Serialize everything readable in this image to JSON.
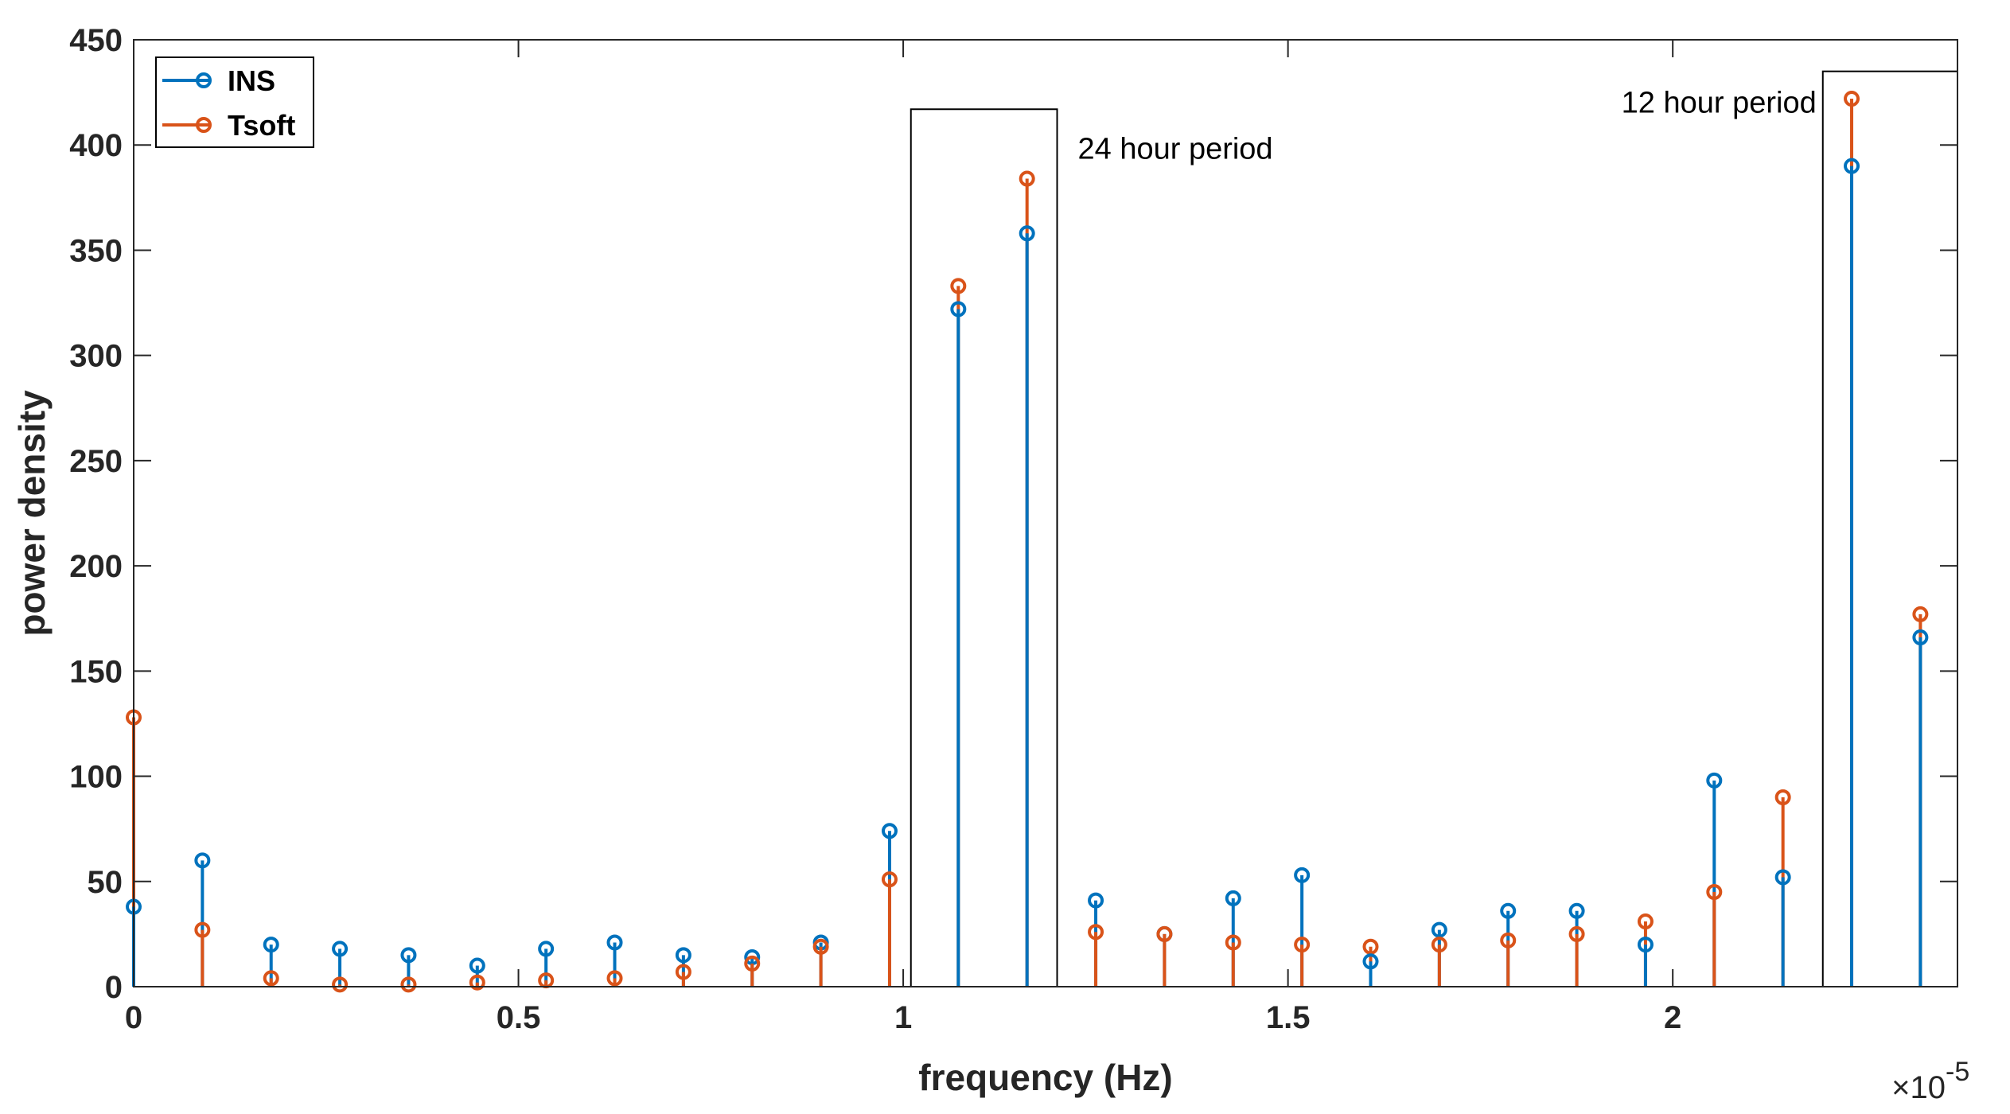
{
  "chart_data": {
    "type": "stem",
    "title": "",
    "xlabel": "frequency (Hz)",
    "ylabel": "power density",
    "x_multiplier": "×10",
    "x_multiplier_exponent": "-5",
    "xlim": [
      0,
      2.37
    ],
    "ylim": [
      0,
      450
    ],
    "xticks": [
      0,
      0.5,
      1,
      1.5,
      2
    ],
    "xtick_labels": [
      "0",
      "0.5",
      "1",
      "1.5",
      "2"
    ],
    "yticks": [
      0,
      50,
      100,
      150,
      200,
      250,
      300,
      350,
      400,
      450
    ],
    "ytick_labels": [
      "0",
      "50",
      "100",
      "150",
      "200",
      "250",
      "300",
      "350",
      "400",
      "450"
    ],
    "x": [
      0,
      0.0893,
      0.1786,
      0.2679,
      0.3572,
      0.4465,
      0.5358,
      0.6251,
      0.7144,
      0.8037,
      0.893,
      0.9823,
      1.0716,
      1.1609,
      1.2502,
      1.3395,
      1.4288,
      1.5181,
      1.6074,
      1.6967,
      1.786,
      1.8753,
      1.9646,
      2.0539,
      2.1432,
      2.2325,
      2.3218
    ],
    "series": [
      {
        "name": "INS",
        "color": "#0072BD",
        "values": [
          38,
          60,
          20,
          18,
          15,
          10,
          18,
          21,
          15,
          14,
          21,
          74,
          322,
          358,
          41,
          25,
          42,
          53,
          12,
          27,
          36,
          36,
          20,
          98,
          52,
          390,
          166
        ]
      },
      {
        "name": "Tsoft",
        "color": "#D95319",
        "values": [
          128,
          27,
          4,
          1,
          1,
          2,
          3,
          4,
          7,
          11,
          19,
          51,
          333,
          384,
          26,
          25,
          21,
          20,
          19,
          20,
          22,
          25,
          31,
          45,
          90,
          422,
          177
        ]
      }
    ],
    "legend": {
      "position": "top-left",
      "entries": [
        "INS",
        "Tsoft"
      ]
    },
    "annotations": [
      {
        "text": "24 hour period",
        "box_x": [
          1.01,
          1.2
        ],
        "box_y": [
          0,
          417
        ]
      },
      {
        "text": "12 hour period",
        "box_x": [
          2.195,
          2.37
        ],
        "box_y": [
          0,
          435
        ]
      }
    ]
  }
}
